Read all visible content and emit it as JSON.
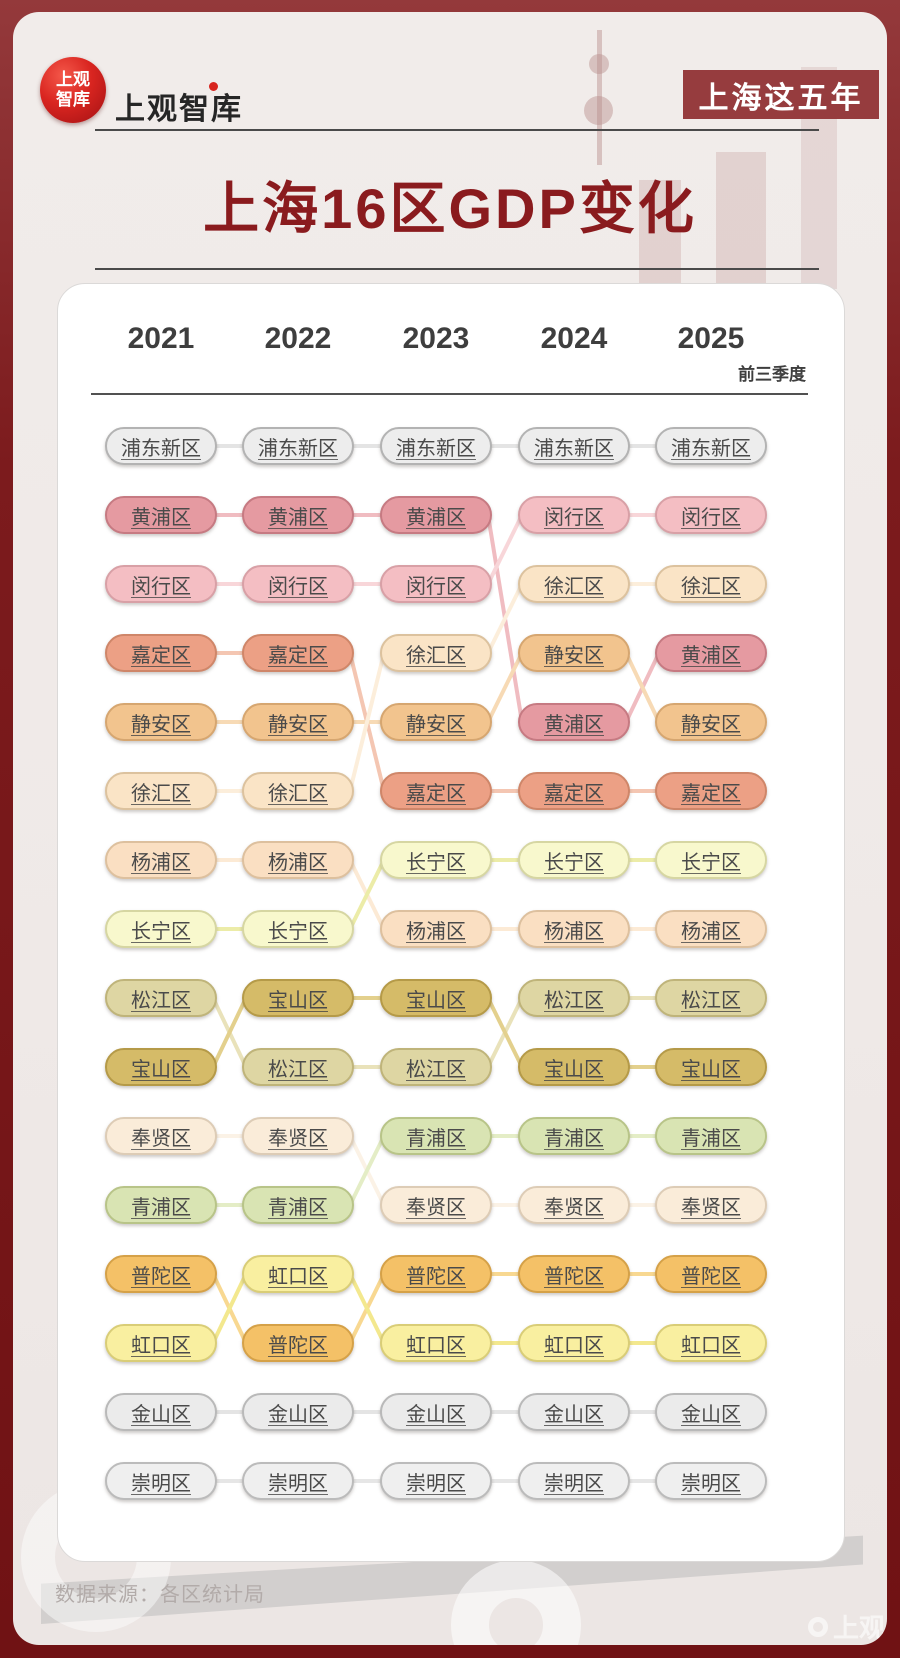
{
  "header": {
    "logo_line1": "上观",
    "logo_line2": "智库",
    "brand": "上观智库",
    "badge": "上海这五年"
  },
  "title": "上海16区GDP变化",
  "footer": {
    "source": "数据来源：各区统计局",
    "watermark": "上观"
  },
  "chart_data": {
    "type": "bump",
    "title": "上海16区GDP变化",
    "description": "GDP ranking of Shanghai's 16 districts per year; rank 1 at top, rank 16 at bottom; pills of the same district are linked across adjacent years",
    "columns": [
      {
        "label": "2021"
      },
      {
        "label": "2022"
      },
      {
        "label": "2023"
      },
      {
        "label": "2024"
      },
      {
        "label": "2025",
        "note": "前三季度"
      }
    ],
    "rankings": {
      "2021": [
        "浦东新区",
        "黄浦区",
        "闵行区",
        "嘉定区",
        "静安区",
        "徐汇区",
        "杨浦区",
        "长宁区",
        "松江区",
        "宝山区",
        "奉贤区",
        "青浦区",
        "普陀区",
        "虹口区",
        "金山区",
        "崇明区"
      ],
      "2022": [
        "浦东新区",
        "黄浦区",
        "闵行区",
        "嘉定区",
        "静安区",
        "徐汇区",
        "杨浦区",
        "长宁区",
        "宝山区",
        "松江区",
        "奉贤区",
        "青浦区",
        "虹口区",
        "普陀区",
        "金山区",
        "崇明区"
      ],
      "2023": [
        "浦东新区",
        "黄浦区",
        "闵行区",
        "徐汇区",
        "静安区",
        "嘉定区",
        "长宁区",
        "杨浦区",
        "宝山区",
        "松江区",
        "青浦区",
        "奉贤区",
        "普陀区",
        "虹口区",
        "金山区",
        "崇明区"
      ],
      "2024": [
        "浦东新区",
        "闵行区",
        "徐汇区",
        "静安区",
        "黄浦区",
        "嘉定区",
        "长宁区",
        "杨浦区",
        "松江区",
        "宝山区",
        "青浦区",
        "奉贤区",
        "普陀区",
        "虹口区",
        "金山区",
        "崇明区"
      ],
      "2025": [
        "浦东新区",
        "闵行区",
        "徐汇区",
        "黄浦区",
        "静安区",
        "嘉定区",
        "长宁区",
        "杨浦区",
        "松江区",
        "宝山区",
        "青浦区",
        "奉贤区",
        "普陀区",
        "虹口区",
        "金山区",
        "崇明区"
      ]
    },
    "district_styles": {
      "浦东新区": {
        "fill": "#ededed",
        "border": "#b3b3b3",
        "line": "#e4e4e4"
      },
      "黄浦区": {
        "fill": "#e59aa1",
        "border": "#c67a82",
        "line": "#f0bcc1"
      },
      "闵行区": {
        "fill": "#f4bec3",
        "border": "#d8a0a6",
        "line": "#f8d6d9"
      },
      "嘉定区": {
        "fill": "#eca085",
        "border": "#cf8669",
        "line": "#f4c6b2"
      },
      "静安区": {
        "fill": "#f2c48e",
        "border": "#d6a670",
        "line": "#f7dab5"
      },
      "徐汇区": {
        "fill": "#fae4c6",
        "border": "#dcc29e",
        "line": "#fceedb"
      },
      "杨浦区": {
        "fill": "#fadfc2",
        "border": "#ddc09e",
        "line": "#fcead5"
      },
      "长宁区": {
        "fill": "#f8f8cd",
        "border": "#d6d6a2",
        "line": "#ececa8"
      },
      "松江区": {
        "fill": "#ded6a3",
        "border": "#bfb47a",
        "line": "#e9e2ba"
      },
      "宝山区": {
        "fill": "#d5bb68",
        "border": "#b59a48",
        "line": "#e3d08d"
      },
      "奉贤区": {
        "fill": "#faecd9",
        "border": "#ddccb6",
        "line": "#fbf2e6"
      },
      "青浦区": {
        "fill": "#d9e4b3",
        "border": "#b8c488",
        "line": "#e4edc6"
      },
      "普陀区": {
        "fill": "#f4c167",
        "border": "#d5a148",
        "line": "#f8d891"
      },
      "虹口区": {
        "fill": "#f9efa0",
        "border": "#d9cd77",
        "line": "#f3e88e"
      },
      "金山区": {
        "fill": "#ebebeb",
        "border": "#b9b9b9",
        "line": "#e4e4e4"
      },
      "崇明区": {
        "fill": "#efefef",
        "border": "#bbbbbb",
        "line": "#e6e6e6"
      }
    },
    "layout": {
      "legend": false,
      "grid": false,
      "rows": 16
    }
  }
}
